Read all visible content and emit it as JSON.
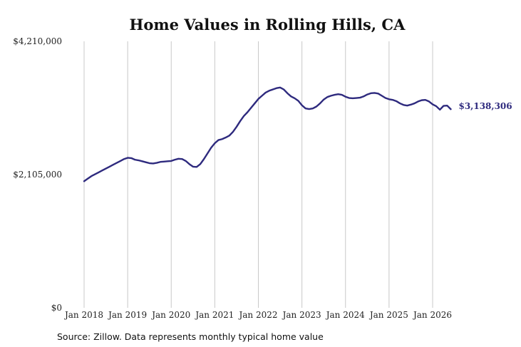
{
  "chart_data": {
    "type": "line",
    "title": "Home Values in Rolling Hills, CA",
    "xlabel": "",
    "ylabel": "",
    "ylim": [
      0,
      4210000
    ],
    "y_ticks": [
      0,
      2105000,
      4210000
    ],
    "y_tick_labels": [
      "$0",
      "$2,105,000",
      "$4,210,000"
    ],
    "x_tick_labels": [
      "Jan 2018",
      "Jan 2019",
      "Jan 2020",
      "Jan 2021",
      "Jan 2022",
      "Jan 2023",
      "Jan 2024",
      "Jan 2025",
      "Jan 2026"
    ],
    "x_tick_dates": [
      "2018-01",
      "2019-01",
      "2020-01",
      "2021-01",
      "2022-01",
      "2023-01",
      "2024-01",
      "2025-01",
      "2026-01"
    ],
    "grid": "vertical",
    "line_color": "#2e2a7e",
    "end_label": "$3,138,306",
    "source": "Source: Zillow. Data represents monthly typical home value",
    "series": [
      {
        "x": [
          "2018-01",
          "2018-02",
          "2018-03",
          "2018-04",
          "2018-05",
          "2018-06",
          "2018-07",
          "2018-08",
          "2018-09",
          "2018-10",
          "2018-11",
          "2018-12",
          "2019-01",
          "2019-02",
          "2019-03",
          "2019-04",
          "2019-05",
          "2019-06",
          "2019-07",
          "2019-08",
          "2019-09",
          "2019-10",
          "2019-11",
          "2019-12",
          "2020-01",
          "2020-02",
          "2020-03",
          "2020-04",
          "2020-05",
          "2020-06",
          "2020-07",
          "2020-08",
          "2020-09",
          "2020-10",
          "2020-11",
          "2020-12",
          "2021-01",
          "2021-02",
          "2021-03",
          "2021-04",
          "2021-05",
          "2021-06",
          "2021-07",
          "2021-08",
          "2021-09",
          "2021-10",
          "2021-11",
          "2021-12",
          "2022-01",
          "2022-02",
          "2022-03",
          "2022-04",
          "2022-05",
          "2022-06",
          "2022-07",
          "2022-08",
          "2022-09",
          "2022-10",
          "2022-11",
          "2022-12",
          "2023-01",
          "2023-02",
          "2023-03",
          "2023-04",
          "2023-05",
          "2023-06",
          "2023-07",
          "2023-08",
          "2023-09",
          "2023-10",
          "2023-11",
          "2023-12",
          "2024-01",
          "2024-02",
          "2024-03",
          "2024-04",
          "2024-05",
          "2024-06",
          "2024-07",
          "2024-08",
          "2024-09",
          "2024-10",
          "2024-11",
          "2024-12",
          "2025-01",
          "2025-02",
          "2025-03",
          "2025-04",
          "2025-05",
          "2025-06",
          "2025-07",
          "2025-08",
          "2025-09",
          "2025-10",
          "2025-11",
          "2025-12",
          "2026-01",
          "2026-02",
          "2026-03",
          "2026-04",
          "2026-05",
          "2026-06"
        ],
        "values": [
          2000000,
          2040000,
          2080000,
          2110000,
          2140000,
          2170000,
          2200000,
          2230000,
          2260000,
          2290000,
          2320000,
          2350000,
          2370000,
          2365000,
          2340000,
          2330000,
          2315000,
          2300000,
          2285000,
          2280000,
          2290000,
          2305000,
          2310000,
          2315000,
          2320000,
          2340000,
          2355000,
          2350000,
          2320000,
          2270000,
          2230000,
          2225000,
          2270000,
          2350000,
          2440000,
          2530000,
          2600000,
          2650000,
          2665000,
          2690000,
          2720000,
          2780000,
          2860000,
          2950000,
          3030000,
          3090000,
          3160000,
          3230000,
          3300000,
          3350000,
          3400000,
          3430000,
          3450000,
          3470000,
          3480000,
          3450000,
          3390000,
          3340000,
          3310000,
          3270000,
          3200000,
          3150000,
          3140000,
          3150000,
          3180000,
          3230000,
          3290000,
          3330000,
          3350000,
          3365000,
          3375000,
          3365000,
          3335000,
          3315000,
          3310000,
          3315000,
          3320000,
          3340000,
          3370000,
          3390000,
          3395000,
          3385000,
          3350000,
          3315000,
          3295000,
          3285000,
          3265000,
          3230000,
          3205000,
          3195000,
          3210000,
          3230000,
          3260000,
          3280000,
          3285000,
          3260000,
          3215000,
          3185000,
          3130000,
          3190000,
          3195000,
          3138306
        ]
      }
    ]
  }
}
